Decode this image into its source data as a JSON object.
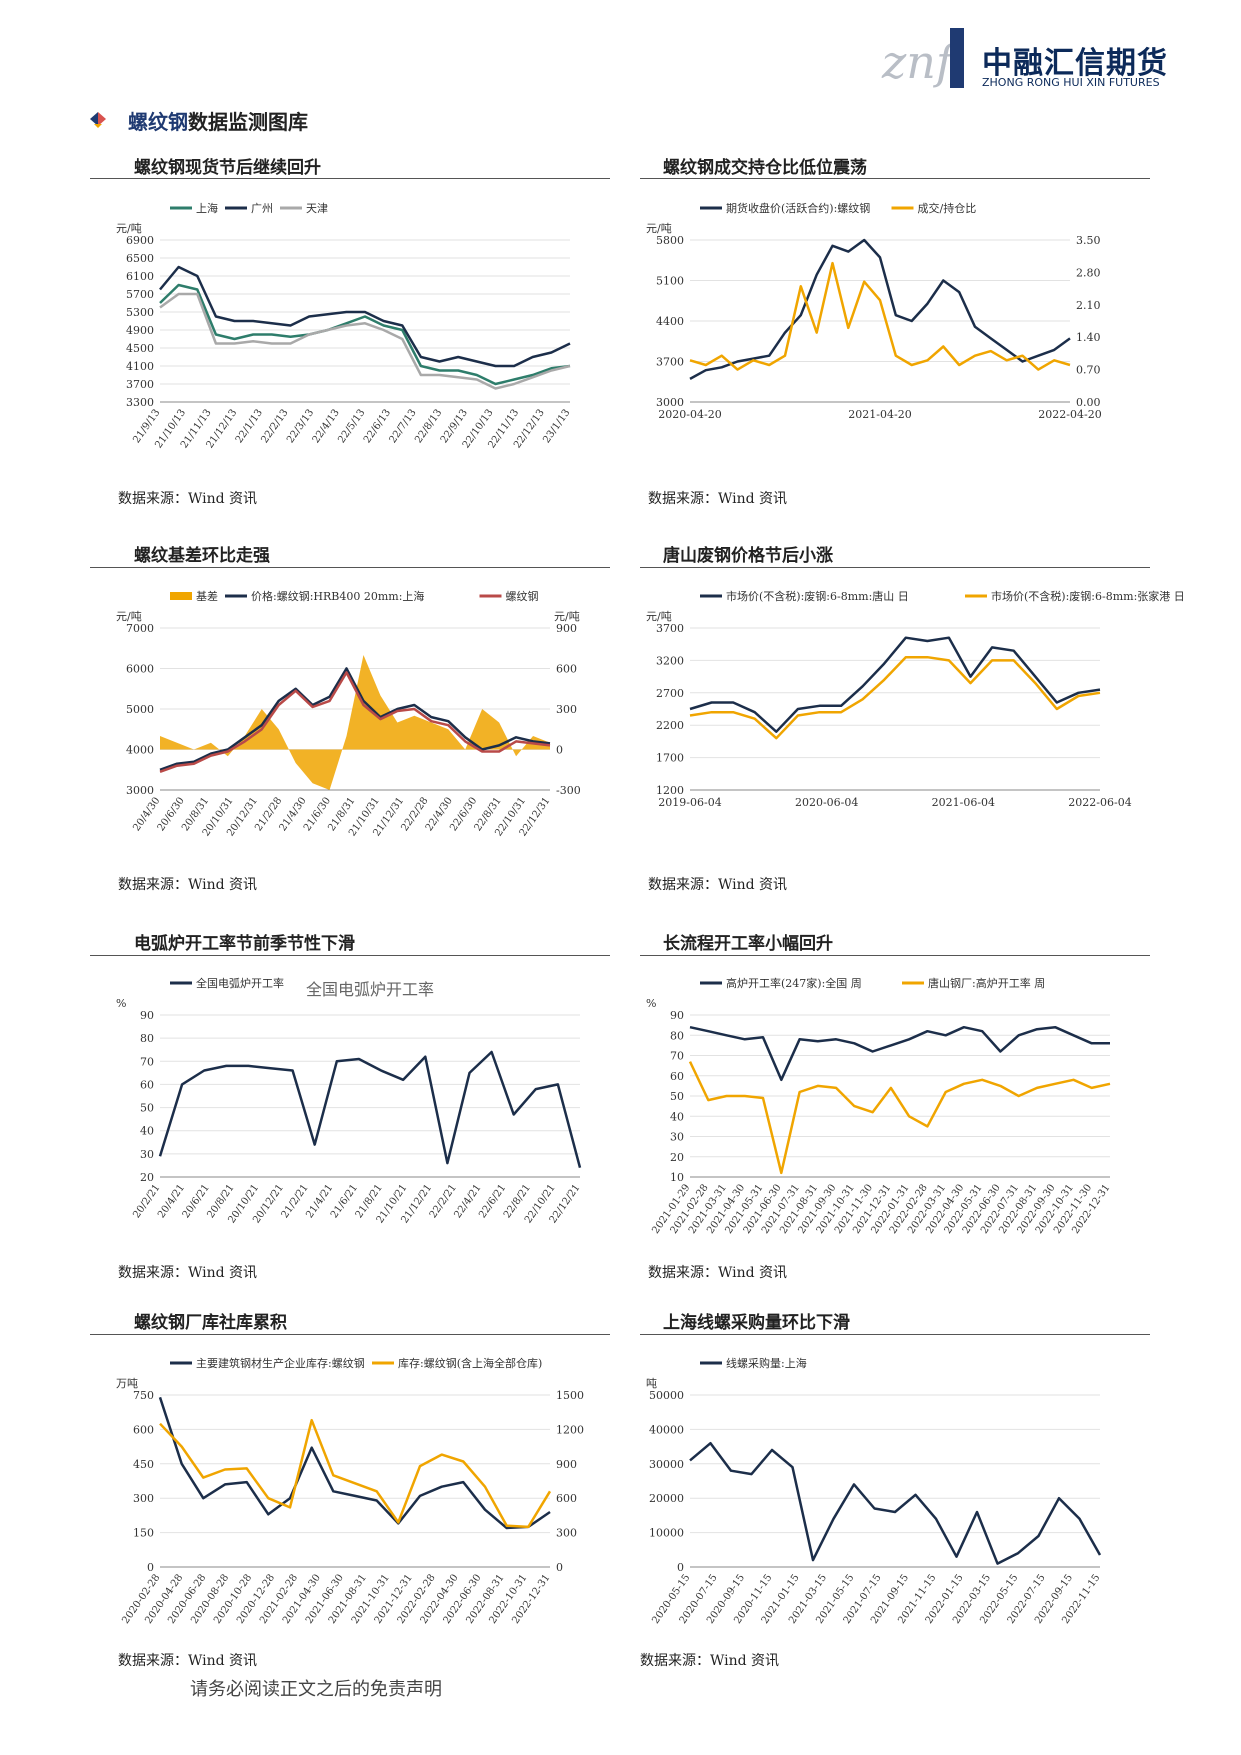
{
  "header": {
    "logo_mark": "znf",
    "company_cn": "中融汇信期货",
    "company_en": "ZHONG RONG HUI XIN FUTURES"
  },
  "section": {
    "title_highlight": "螺纹钢",
    "title_rest": "数据监测图库"
  },
  "panels": [
    {
      "title": "螺纹钢现货节后继续回升",
      "source": "数据来源：Wind 资讯"
    },
    {
      "title": "螺纹钢成交持仓比低位震荡",
      "source": "数据来源：Wind 资讯"
    },
    {
      "title": "螺纹基差环比走强",
      "source": "数据来源：Wind 资讯"
    },
    {
      "title": "唐山废钢价格节后小涨",
      "source": "数据来源：Wind 资讯"
    },
    {
      "title": "电弧炉开工率节前季节性下滑",
      "source": "数据来源：Wind 资讯"
    },
    {
      "title": "长流程开工率小幅回升",
      "source": "数据来源：Wind 资讯"
    },
    {
      "title": "螺纹钢厂库社库累积",
      "source": "数据来源：Wind 资讯"
    },
    {
      "title": "上海线螺采购量环比下滑",
      "source": "数据来源：Wind 资讯"
    }
  ],
  "footer": "请务必阅读正文之后的免责声明",
  "chart_data": [
    {
      "type": "line",
      "ylabel": "元/吨",
      "ylim": [
        3300,
        6900
      ],
      "yticks": [
        "6900",
        "6500",
        "6100",
        "5700",
        "5300",
        "4900",
        "4500",
        "4100",
        "3700",
        "3300"
      ],
      "xticks": [
        "21/9/13",
        "21/10/13",
        "21/11/13",
        "21/12/13",
        "22/1/13",
        "22/2/13",
        "22/3/13",
        "22/4/13",
        "22/5/13",
        "22/6/13",
        "22/7/13",
        "22/8/13",
        "22/9/13",
        "22/10/13",
        "22/11/13",
        "22/12/13",
        "23/1/13"
      ],
      "series": [
        {
          "name": "上海",
          "color": "#2e7d6b",
          "values": [
            5500,
            5900,
            5800,
            4800,
            4700,
            4800,
            4800,
            4750,
            4800,
            4900,
            5050,
            5200,
            5000,
            4900,
            4100,
            4000,
            4000,
            3900,
            3700,
            3800,
            3900,
            4050,
            4100
          ]
        },
        {
          "name": "广州",
          "color": "#1c2e4a",
          "values": [
            5800,
            6300,
            6100,
            5200,
            5100,
            5100,
            5050,
            5000,
            5200,
            5250,
            5300,
            5300,
            5100,
            5000,
            4300,
            4200,
            4300,
            4200,
            4100,
            4100,
            4300,
            4400,
            4600
          ]
        },
        {
          "name": "天津",
          "color": "#a9a9a9",
          "values": [
            5400,
            5700,
            5700,
            4600,
            4600,
            4650,
            4600,
            4600,
            4800,
            4900,
            5000,
            5050,
            4900,
            4700,
            3900,
            3900,
            3850,
            3800,
            3600,
            3700,
            3850,
            4000,
            4100
          ]
        }
      ]
    },
    {
      "type": "line",
      "ylabel": "元/吨",
      "ylim": [
        3000,
        5800
      ],
      "yticks": [
        "5800",
        "5100",
        "4400",
        "3700",
        "3000"
      ],
      "y2lim": [
        0,
        3.5
      ],
      "y2ticks": [
        "3.50",
        "2.80",
        "2.10",
        "1.40",
        "0.70",
        "0.00"
      ],
      "xticks": [
        "2020-04-20",
        "2021-04-20",
        "2022-04-20"
      ],
      "series": [
        {
          "name": "期货收盘价(活跃合约):螺纹钢",
          "color": "#1c2e4a",
          "values": [
            3400,
            3550,
            3600,
            3700,
            3750,
            3800,
            4200,
            4500,
            5200,
            5700,
            5600,
            5800,
            5500,
            4500,
            4400,
            4700,
            5100,
            4900,
            4300,
            4100,
            3900,
            3700,
            3800,
            3900,
            4100
          ]
        },
        {
          "name": "成交/持仓比",
          "color": "#f0a500",
          "axis": "right",
          "values": [
            0.9,
            0.8,
            1.0,
            0.7,
            0.9,
            0.8,
            1.0,
            2.5,
            1.5,
            3.0,
            1.6,
            2.6,
            2.2,
            1.0,
            0.8,
            0.9,
            1.2,
            0.8,
            1.0,
            1.1,
            0.9,
            1.0,
            0.7,
            0.9,
            0.8
          ]
        }
      ]
    },
    {
      "type": "line",
      "ylabel": "元/吨",
      "y2label": "元/吨",
      "ylim": [
        3000,
        7000
      ],
      "yticks": [
        "7000",
        "6000",
        "5000",
        "4000",
        "3000"
      ],
      "y2lim": [
        -300,
        900
      ],
      "y2ticks": [
        "900",
        "600",
        "300",
        "0",
        "-300"
      ],
      "xticks": [
        "20/4/30",
        "20/6/30",
        "20/8/31",
        "20/10/31",
        "20/12/31",
        "21/2/28",
        "21/4/30",
        "21/6/30",
        "21/8/31",
        "21/10/31",
        "21/12/31",
        "22/2/28",
        "22/4/30",
        "22/6/30",
        "22/8/31",
        "22/10/31",
        "22/12/31"
      ],
      "series": [
        {
          "name": "基差",
          "color": "#f0a500",
          "type": "area",
          "axis": "right",
          "values": [
            100,
            50,
            0,
            50,
            -50,
            100,
            300,
            150,
            -100,
            -250,
            -300,
            100,
            700,
            400,
            200,
            250,
            200,
            150,
            0,
            300,
            200,
            -50,
            100,
            50
          ]
        },
        {
          "name": "价格:螺纹钢:HRB400 20mm:上海",
          "color": "#1c2e4a",
          "values": [
            3500,
            3650,
            3700,
            3900,
            4000,
            4300,
            4600,
            5200,
            5500,
            5100,
            5300,
            6000,
            5200,
            4800,
            5000,
            5100,
            4800,
            4700,
            4300,
            4000,
            4100,
            4300,
            4200,
            4150
          ]
        },
        {
          "name": "螺纹钢",
          "color": "#b94a48",
          "values": [
            3450,
            3600,
            3650,
            3850,
            3950,
            4200,
            4500,
            5100,
            5450,
            5050,
            5200,
            5900,
            5100,
            4750,
            4950,
            5000,
            4700,
            4600,
            4200,
            3950,
            3950,
            4200,
            4150,
            4100
          ]
        }
      ]
    },
    {
      "type": "line",
      "ylabel": "元/吨",
      "ylim": [
        1200,
        3700
      ],
      "yticks": [
        "3700",
        "3200",
        "2700",
        "2200",
        "1700",
        "1200"
      ],
      "xticks": [
        "2019-06-04",
        "2020-06-04",
        "2021-06-04",
        "2022-06-04"
      ],
      "series": [
        {
          "name": "市场价(不含税):废钢:6-8mm:唐山 日",
          "color": "#1c2e4a",
          "values": [
            2450,
            2550,
            2550,
            2400,
            2100,
            2450,
            2500,
            2500,
            2800,
            3150,
            3550,
            3500,
            3550,
            2950,
            3400,
            3350,
            2950,
            2550,
            2700,
            2750
          ]
        },
        {
          "name": "市场价(不含税):废钢:6-8mm:张家港 日",
          "color": "#f0a500",
          "values": [
            2350,
            2400,
            2400,
            2300,
            2000,
            2350,
            2400,
            2400,
            2600,
            2900,
            3250,
            3250,
            3200,
            2850,
            3200,
            3200,
            2850,
            2450,
            2650,
            2700
          ]
        }
      ]
    },
    {
      "type": "line",
      "title": "全国电弧炉开工率",
      "ylabel": "%",
      "ylim": [
        20,
        90
      ],
      "yticks": [
        "90",
        "80",
        "70",
        "60",
        "50",
        "40",
        "30",
        "20"
      ],
      "xticks": [
        "20/2/21",
        "20/4/21",
        "20/6/21",
        "20/8/21",
        "20/10/21",
        "20/12/21",
        "21/2/21",
        "21/4/21",
        "21/6/21",
        "21/8/21",
        "21/10/21",
        "21/12/21",
        "22/2/21",
        "22/4/21",
        "22/6/21",
        "22/8/21",
        "22/10/21",
        "22/12/21"
      ],
      "series": [
        {
          "name": "全国电弧炉开工率",
          "color": "#1c2e4a",
          "values": [
            29,
            60,
            66,
            68,
            68,
            67,
            66,
            34,
            70,
            71,
            66,
            62,
            72,
            26,
            65,
            74,
            47,
            58,
            60,
            24
          ]
        }
      ]
    },
    {
      "type": "line",
      "ylabel": "%",
      "ylim": [
        10,
        90
      ],
      "yticks": [
        "90",
        "80",
        "70",
        "60",
        "50",
        "40",
        "30",
        "20",
        "10"
      ],
      "xticks": [
        "2021-01-29",
        "2021-02-28",
        "2021-03-31",
        "2021-04-30",
        "2021-05-31",
        "2021-06-30",
        "2021-07-31",
        "2021-08-31",
        "2021-09-30",
        "2021-10-31",
        "2021-11-30",
        "2021-12-31",
        "2022-01-31",
        "2022-02-28",
        "2022-03-31",
        "2022-04-30",
        "2022-05-31",
        "2022-06-30",
        "2022-07-31",
        "2022-08-31",
        "2022-09-30",
        "2022-10-31",
        "2022-11-30",
        "2022-12-31"
      ],
      "series": [
        {
          "name": "高炉开工率(247家):全国 周",
          "color": "#1c2e4a",
          "values": [
            84,
            82,
            80,
            78,
            79,
            58,
            78,
            77,
            78,
            76,
            72,
            75,
            78,
            82,
            80,
            84,
            82,
            72,
            80,
            83,
            84,
            80,
            76,
            76
          ]
        },
        {
          "name": "唐山钢厂:高炉开工率 周",
          "color": "#f0a500",
          "values": [
            67,
            48,
            50,
            50,
            49,
            12,
            52,
            55,
            54,
            45,
            42,
            54,
            40,
            35,
            52,
            56,
            58,
            55,
            50,
            54,
            56,
            58,
            54,
            56
          ]
        }
      ]
    },
    {
      "type": "line",
      "ylabel": "万吨",
      "ylim": [
        0,
        750
      ],
      "yticks": [
        "750",
        "600",
        "450",
        "300",
        "150",
        "0"
      ],
      "y2lim": [
        0,
        1500
      ],
      "y2ticks": [
        "1500",
        "1200",
        "900",
        "600",
        "300",
        "0"
      ],
      "xticks": [
        "2020-02-28",
        "2020-04-28",
        "2020-06-28",
        "2020-08-28",
        "2020-10-28",
        "2020-12-28",
        "2021-02-28",
        "2021-04-30",
        "2021-06-30",
        "2021-08-31",
        "2021-10-31",
        "2021-12-31",
        "2022-02-28",
        "2022-04-30",
        "2022-06-30",
        "2022-08-31",
        "2022-10-31",
        "2022-12-31"
      ],
      "series": [
        {
          "name": "主要建筑钢材生产企业库存:螺纹钢",
          "color": "#1c2e4a",
          "values": [
            740,
            450,
            300,
            360,
            370,
            230,
            300,
            520,
            330,
            310,
            290,
            190,
            310,
            350,
            370,
            250,
            170,
            175,
            240
          ]
        },
        {
          "name": "库存:螺纹钢(含上海全部仓库)",
          "color": "#f0a500",
          "axis": "right",
          "values": [
            1250,
            1050,
            780,
            850,
            860,
            600,
            520,
            1280,
            800,
            730,
            660,
            390,
            880,
            980,
            920,
            700,
            360,
            350,
            660
          ]
        }
      ]
    },
    {
      "type": "line",
      "ylabel": "吨",
      "ylim": [
        0,
        50000
      ],
      "yticks": [
        "50000",
        "40000",
        "30000",
        "20000",
        "10000",
        "0"
      ],
      "xticks": [
        "2020-05-15",
        "2020-07-15",
        "2020-09-15",
        "2020-11-15",
        "2021-01-15",
        "2021-03-15",
        "2021-05-15",
        "2021-07-15",
        "2021-09-15",
        "2021-11-15",
        "2022-01-15",
        "2022-03-15",
        "2022-05-15",
        "2022-07-15",
        "2022-09-15",
        "2022-11-15"
      ],
      "series": [
        {
          "name": "线螺采购量:上海",
          "color": "#1c2e4a",
          "values": [
            31000,
            36000,
            28000,
            27000,
            34000,
            29000,
            2000,
            14000,
            24000,
            17000,
            16000,
            21000,
            14000,
            3000,
            16000,
            1000,
            4000,
            9000,
            20000,
            14000,
            3500
          ]
        }
      ]
    }
  ]
}
